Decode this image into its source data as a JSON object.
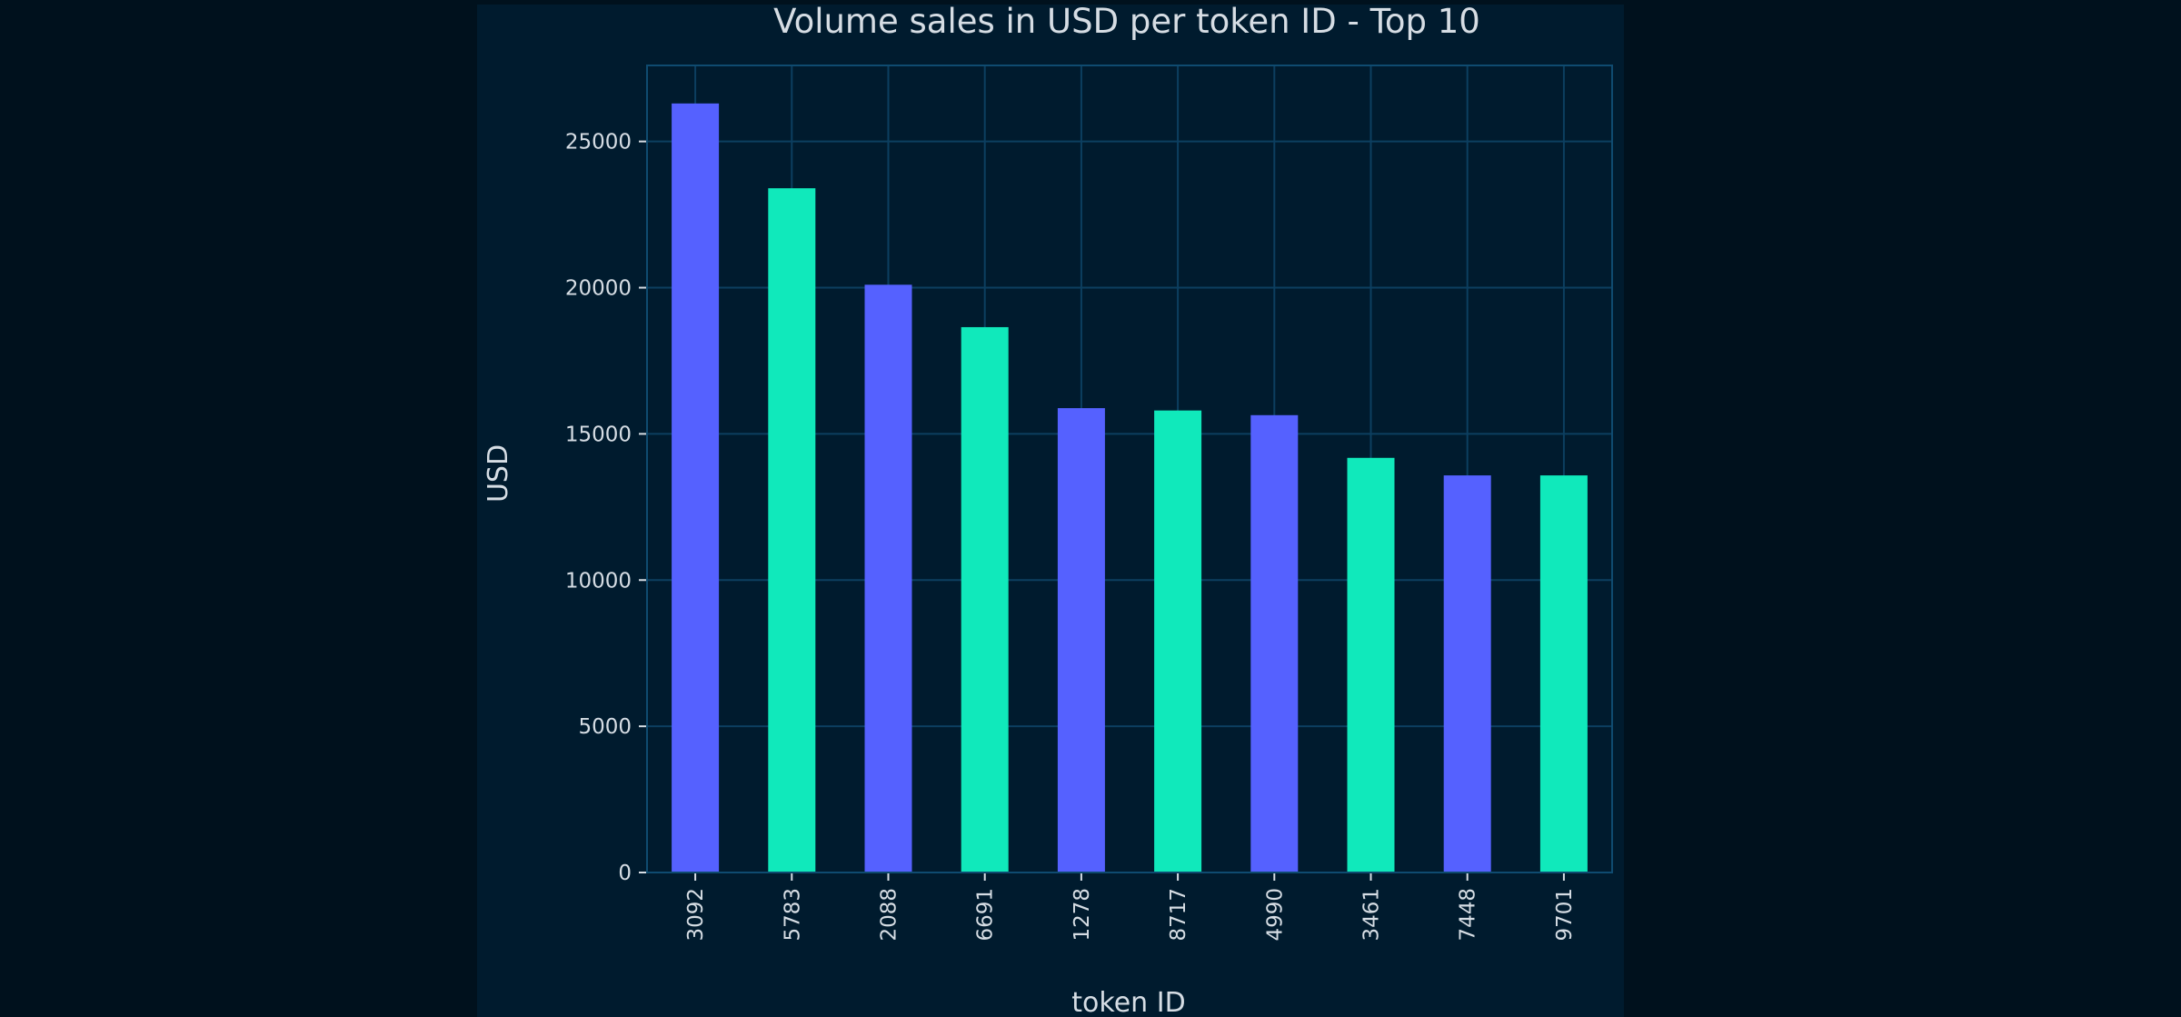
{
  "chart_data": {
    "type": "bar",
    "title": "Volume sales in USD per token ID - Top 10",
    "xlabel": "token ID",
    "ylabel": "USD",
    "categories": [
      "3092",
      "5783",
      "2088",
      "6691",
      "1278",
      "8717",
      "4990",
      "3461",
      "7448",
      "9701"
    ],
    "values": [
      26300,
      23400,
      20100,
      18650,
      15880,
      15800,
      15640,
      14180,
      13580,
      13580
    ],
    "ylim": [
      0,
      27600
    ],
    "yticks": [
      0,
      5000,
      10000,
      15000,
      20000,
      25000
    ],
    "grid": true,
    "bar_colors": [
      "#5561ff",
      "#10e9bb"
    ],
    "background": "#001b2e",
    "page_background": "#00111d",
    "grid_color": "#0c3f60"
  }
}
